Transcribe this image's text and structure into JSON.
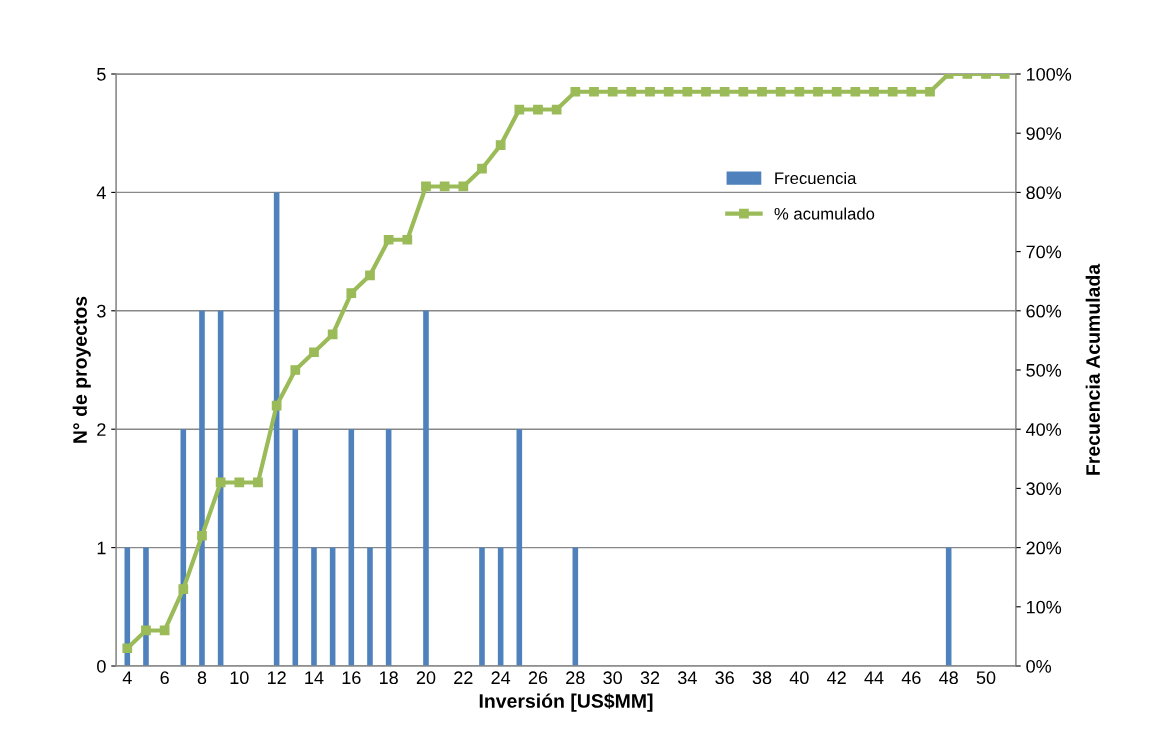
{
  "chart_data": {
    "type": "bar",
    "xlabel": "Inversión [US$MM]",
    "ylabel": "N° de proyectos",
    "y2label": "Frecuencia Acumulada",
    "categories": [
      "4",
      null,
      "6",
      null,
      "8",
      null,
      "10",
      null,
      "12",
      null,
      "14",
      null,
      "16",
      null,
      "18",
      null,
      "20",
      null,
      "22",
      null,
      "24",
      null,
      "26",
      null,
      "28",
      null,
      "30",
      null,
      "32",
      null,
      "34",
      null,
      "36",
      null,
      "38",
      null,
      "40",
      null,
      "42",
      null,
      "44",
      null,
      "46",
      null,
      "48",
      null,
      "50",
      null
    ],
    "series": [
      {
        "name": "Frecuencia",
        "color": "#4f81bd",
        "values": [
          1,
          1,
          0,
          2,
          3,
          3,
          0,
          0,
          4,
          2,
          1,
          1,
          2,
          1,
          2,
          0,
          3,
          0,
          0,
          1,
          1,
          2,
          0,
          0,
          1,
          0,
          0,
          0,
          0,
          0,
          0,
          0,
          0,
          0,
          0,
          0,
          0,
          0,
          0,
          0,
          0,
          0,
          0,
          0,
          1,
          0,
          0,
          0
        ]
      },
      {
        "name": "% acumulado",
        "type": "line",
        "axis": "y2",
        "color": "#9bbb59",
        "marker": "square",
        "values": [
          3,
          6,
          6,
          13,
          22,
          31,
          31,
          31,
          44,
          50,
          53,
          56,
          63,
          66,
          72,
          72,
          81,
          81,
          81,
          84,
          88,
          94,
          94,
          94,
          97,
          97,
          97,
          97,
          97,
          97,
          97,
          97,
          97,
          97,
          97,
          97,
          97,
          97,
          97,
          97,
          97,
          97,
          97,
          97,
          100,
          100,
          100,
          100
        ]
      }
    ],
    "ylim": [
      0,
      5
    ],
    "yticks": [
      0,
      1,
      2,
      3,
      4,
      5
    ],
    "y2lim": [
      0,
      100
    ],
    "y2ticks": [
      {
        "value": 0,
        "label": "0%"
      },
      {
        "value": 10,
        "label": "10%"
      },
      {
        "value": 20,
        "label": "20%"
      },
      {
        "value": 30,
        "label": "30%"
      },
      {
        "value": 40,
        "label": "40%"
      },
      {
        "value": 50,
        "label": "50%"
      },
      {
        "value": 60,
        "label": "60%"
      },
      {
        "value": 70,
        "label": "70%"
      },
      {
        "value": 80,
        "label": "80%"
      },
      {
        "value": 90,
        "label": "90%"
      },
      {
        "value": 100,
        "label": "100%"
      }
    ],
    "grid": "y",
    "legend": "top right"
  }
}
